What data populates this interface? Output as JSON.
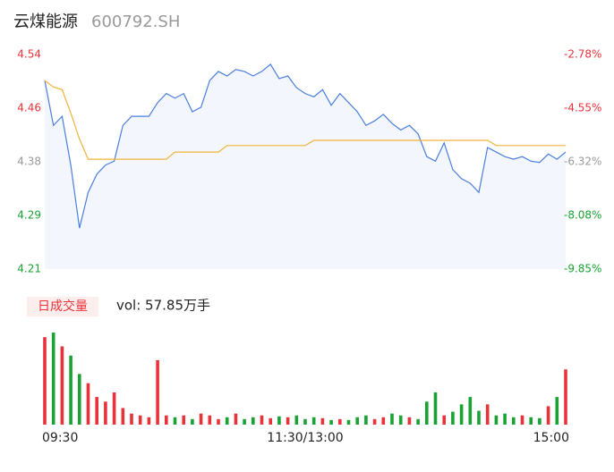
{
  "header": {
    "name": "云煤能源",
    "code": "600792.SH"
  },
  "chart_data": [
    {
      "type": "line",
      "x": [
        0,
        4,
        8,
        12,
        16,
        20,
        24,
        28,
        32,
        36,
        40,
        44,
        48,
        52,
        56,
        60,
        64,
        68,
        72,
        76,
        80,
        84,
        88,
        92,
        96,
        100,
        104,
        108,
        112,
        116,
        120,
        124,
        128,
        132,
        136,
        140,
        144,
        148,
        152,
        156,
        160,
        164,
        168,
        172,
        176,
        180,
        184,
        188,
        192,
        196,
        200,
        204,
        208,
        212,
        216,
        220,
        224,
        228,
        232,
        236,
        240
      ],
      "xlim": [
        0,
        240
      ],
      "xticks": [
        {
          "value": 0,
          "label": "09:30"
        },
        {
          "value": 120,
          "label": "11:30/13:00"
        },
        {
          "value": 240,
          "label": "15:00"
        }
      ],
      "ylim": [
        4.21,
        4.54
      ],
      "yticks": [
        4.21,
        {
          "value": 4.2925,
          "label": "4.29"
        },
        {
          "value": 4.375,
          "label": "4.38"
        },
        {
          "value": 4.4575,
          "label": "4.46"
        },
        4.54
      ],
      "ytick_colors": [
        "#1aa334",
        "#1aa334",
        "#999999",
        "#e8333a",
        "#e8333a"
      ],
      "y2lim": [
        -9.85,
        -2.78
      ],
      "y2ticks": [
        {
          "value": -9.85,
          "label": "-9.85%"
        },
        {
          "value": -8.0825,
          "label": "-8.08%"
        },
        {
          "value": -6.315,
          "label": "-6.32%"
        },
        {
          "value": -4.5475,
          "label": "-4.55%"
        },
        {
          "value": -2.78,
          "label": "-2.78%"
        }
      ],
      "area_color": "#f3f6fd",
      "series": [
        {
          "color": "#4a7fdc",
          "values": [
            4.5,
            4.431,
            4.445,
            4.37,
            4.273,
            4.328,
            4.356,
            4.37,
            4.376,
            4.431,
            4.445,
            4.445,
            4.445,
            4.466,
            4.48,
            4.473,
            4.48,
            4.452,
            4.459,
            4.5,
            4.514,
            4.507,
            4.517,
            4.514,
            4.507,
            4.514,
            4.525,
            4.503,
            4.507,
            4.489,
            4.48,
            4.475,
            4.486,
            4.462,
            4.48,
            4.466,
            4.452,
            4.431,
            4.438,
            4.448,
            4.434,
            4.424,
            4.431,
            4.418,
            4.383,
            4.376,
            4.404,
            4.363,
            4.349,
            4.342,
            4.328,
            4.397,
            4.39,
            4.383,
            4.379,
            4.383,
            4.376,
            4.374,
            4.387,
            4.379,
            4.39
          ]
        },
        {
          "color": "#f2b33d",
          "values": [
            4.5,
            4.49,
            4.486,
            4.45,
            4.41,
            4.379,
            4.379,
            4.379,
            4.379,
            4.379,
            4.379,
            4.379,
            4.379,
            4.379,
            4.379,
            4.39,
            4.39,
            4.39,
            4.39,
            4.39,
            4.39,
            4.4,
            4.4,
            4.4,
            4.4,
            4.4,
            4.4,
            4.4,
            4.4,
            4.4,
            4.4,
            4.408,
            4.408,
            4.408,
            4.408,
            4.408,
            4.408,
            4.408,
            4.408,
            4.408,
            4.408,
            4.408,
            4.408,
            4.408,
            4.408,
            4.408,
            4.408,
            4.408,
            4.408,
            4.408,
            4.408,
            4.408,
            4.4,
            4.4,
            4.4,
            4.4,
            4.4,
            4.4,
            4.4,
            4.4,
            4.4
          ]
        }
      ]
    },
    {
      "type": "bar",
      "title": "日成交量",
      "annotation": "vol: 57.85万手",
      "ylim": [
        0,
        100
      ],
      "colors": {
        "up": "#e8333a",
        "down": "#1aa334"
      },
      "values": [
        95,
        100,
        85,
        75,
        55,
        45,
        30,
        25,
        35,
        18,
        12,
        10,
        8,
        70,
        10,
        8,
        10,
        6,
        12,
        10,
        6,
        8,
        12,
        6,
        8,
        10,
        7,
        9,
        8,
        10,
        6,
        8,
        7,
        5,
        6,
        5,
        8,
        10,
        6,
        8,
        12,
        10,
        8,
        6,
        25,
        35,
        10,
        14,
        22,
        30,
        15,
        22,
        10,
        12,
        8,
        10,
        8,
        7,
        20,
        30,
        60
      ]
    }
  ]
}
